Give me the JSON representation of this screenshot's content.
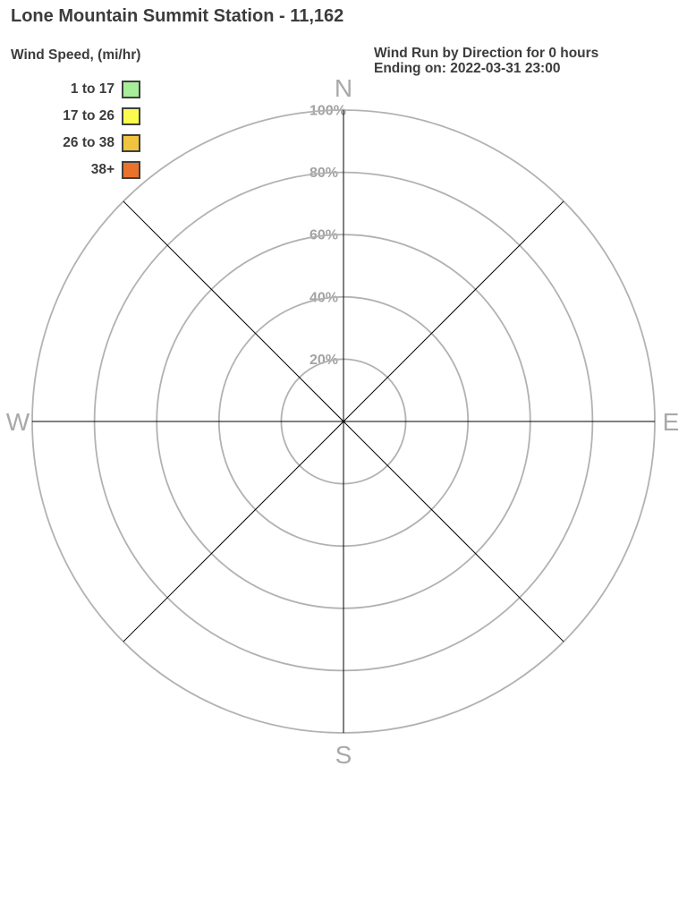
{
  "header": {
    "title": "Lone Mountain Summit Station - 11,162",
    "subtitle_line1": "Wind Run by Direction for 0 hours",
    "subtitle_line2": "Ending on: 2022-03-31 23:00"
  },
  "legend": {
    "title": "Wind Speed, (mi/hr)",
    "bins": [
      {
        "label": "1 to 17",
        "color": "#a7ee9b"
      },
      {
        "label": "17 to 26",
        "color": "#fbfb4e"
      },
      {
        "label": "26 to 38",
        "color": "#f1c440"
      },
      {
        "label": "38+",
        "color": "#e9722d"
      }
    ]
  },
  "chart_data": {
    "type": "wind_rose",
    "title": "Wind Run by Direction for 0 hours",
    "subtitle": "Ending on: 2022-03-31 23:00",
    "hours": 0,
    "ending_on": "2022-03-31 23:00",
    "radial_axis": {
      "unit": "%",
      "max": 100,
      "ticks": [
        20,
        40,
        60,
        80,
        100
      ],
      "tick_labels": [
        "20%",
        "40%",
        "60%",
        "80%",
        "100%"
      ]
    },
    "direction_labels": [
      "N",
      "E",
      "S",
      "W"
    ],
    "spokes_degrees": [
      0,
      45,
      90,
      135,
      180,
      225,
      270,
      315
    ],
    "series": [],
    "speed_bins": [
      {
        "label": "1 to 17",
        "color": "#a7ee9b"
      },
      {
        "label": "17 to 26",
        "color": "#fbfb4e"
      },
      {
        "label": "26 to 38",
        "color": "#f1c440"
      },
      {
        "label": "38+",
        "color": "#e9722d"
      }
    ],
    "grid_color": "#b2b2b2",
    "spoke_color": "#000000",
    "axis_label_color": "#a9a9a9",
    "tick_label_color": "#a3a3a3"
  }
}
